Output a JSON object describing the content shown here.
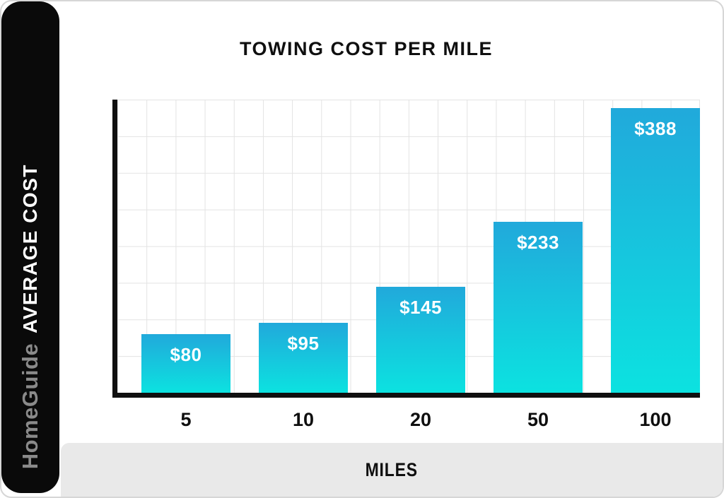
{
  "sidebar": {
    "brand": "HomeGuide",
    "axis_label": "AVERAGE COST"
  },
  "chart": {
    "title": "TOWING COST PER MILE",
    "xlabel": "MILES"
  },
  "chart_data": {
    "type": "bar",
    "categories": [
      "5",
      "10",
      "20",
      "50",
      "100"
    ],
    "values": [
      80,
      95,
      145,
      233,
      388
    ],
    "bar_labels": [
      "$80",
      "$95",
      "$145",
      "$233",
      "$388"
    ],
    "title": "TOWING COST PER MILE",
    "xlabel": "MILES",
    "ylabel": "AVERAGE COST",
    "ylim": [
      0,
      400
    ],
    "grid": true,
    "legend": false,
    "bar_color_top": "#21a9db",
    "bar_color_bottom": "#0ce2e0"
  },
  "colors": {
    "sidebar_bg": "#0a0a0a",
    "brand_text": "#8a8a8a",
    "grid_line": "#e3e3e3",
    "axis_line": "#101010",
    "footer_band": "#e9e9e9",
    "card_border": "#d6d6d6"
  }
}
